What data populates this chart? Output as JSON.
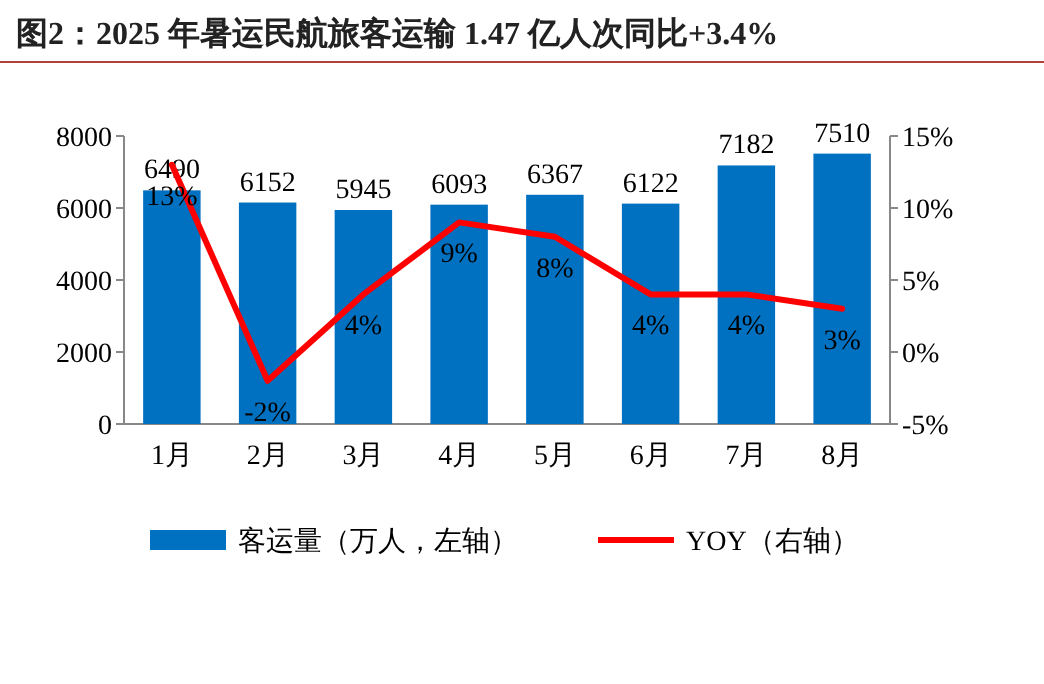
{
  "chart_data": {
    "type": "bar",
    "title": "图2：2025 年暑运民航旅客运输 1.47 亿人次同比+3.4%",
    "categories": [
      "1月",
      "2月",
      "3月",
      "4月",
      "5月",
      "6月",
      "7月",
      "8月"
    ],
    "series": [
      {
        "name": "客运量（万人，左轴）",
        "color": "#0070c0",
        "values": [
          6490,
          6152,
          5945,
          6093,
          6367,
          6122,
          7182,
          7510
        ]
      },
      {
        "name": "YOY（右轴）",
        "type": "line",
        "axis": "y2",
        "color": "#ff0000",
        "values": [
          13,
          -2,
          4,
          9,
          8,
          4,
          4,
          3
        ],
        "value_labels": [
          "13%",
          "-2%",
          "4%",
          "9%",
          "8%",
          "4%",
          "4%",
          "3%"
        ]
      }
    ],
    "ylim": [
      0,
      8000
    ],
    "yticks": [
      0,
      2000,
      4000,
      6000,
      8000
    ],
    "y2lim": [
      -5,
      15
    ],
    "y2ticks": [
      {
        "value": -5,
        "label": "-5%"
      },
      {
        "value": 0,
        "label": "0%"
      },
      {
        "value": 5,
        "label": "5%"
      },
      {
        "value": 10,
        "label": "10%"
      },
      {
        "value": 15,
        "label": "15%"
      }
    ],
    "data_labels": true,
    "legend": "bottom",
    "grid": false,
    "marker": "none"
  }
}
